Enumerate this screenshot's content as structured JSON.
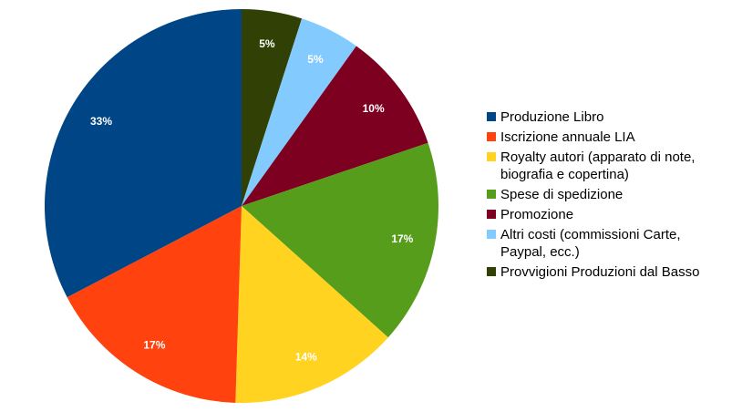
{
  "chart_data": {
    "type": "pie",
    "title": "",
    "start_angle_deg": 0,
    "direction": "clockwise",
    "legend_position": "right",
    "slices": [
      {
        "label": "Produzione Libro",
        "value": 33,
        "value_label": "33%",
        "color": "#004586"
      },
      {
        "label": "Iscrizione annuale LIA",
        "value": 17,
        "value_label": "17%",
        "color": "#ff420e"
      },
      {
        "label": "Royalty autori (apparato di note, biografia e copertina)",
        "value": 14,
        "value_label": "14%",
        "color": "#ffd320"
      },
      {
        "label": "Spese di spedizione",
        "value": 17,
        "value_label": "17%",
        "color": "#579d1c"
      },
      {
        "label": "Promozione",
        "value": 10,
        "value_label": "10%",
        "color": "#7e0021"
      },
      {
        "label": "Altri costi (commissioni Carte, Paypal, ecc.)",
        "value": 5,
        "value_label": "5%",
        "color": "#83caff"
      },
      {
        "label": "Provvigioni Produzioni dal Basso",
        "value": 5,
        "value_label": "5%",
        "color": "#314004"
      }
    ]
  }
}
